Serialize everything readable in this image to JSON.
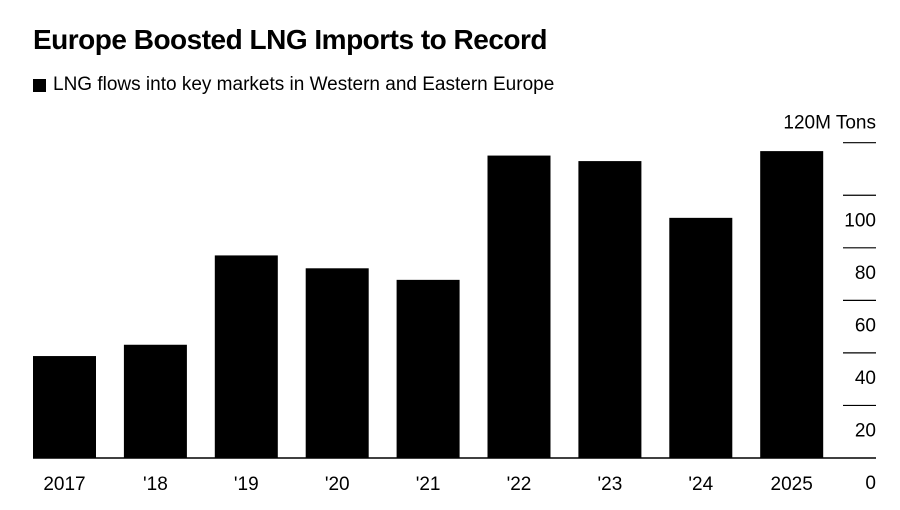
{
  "chart_data": {
    "type": "bar",
    "title": "Europe Boosted LNG Imports to Record",
    "legend": [
      {
        "label": "LNG flows into key markets in Western and Eastern Europe",
        "color": "#000000"
      }
    ],
    "legend_placement": "top-left",
    "categories": [
      "2017",
      "'18",
      "'19",
      "'20",
      "'21",
      "'22",
      "'23",
      "'24",
      "2025"
    ],
    "values": [
      38.8,
      43.1,
      77.1,
      72.2,
      67.8,
      115.1,
      113.0,
      91.4,
      116.8
    ],
    "ylabel": "",
    "xlabel": "",
    "ylim": [
      0,
      120
    ],
    "yticks": [
      0,
      20,
      40,
      60,
      80,
      100,
      120
    ],
    "ytick_labels": [
      "0",
      "20",
      "40",
      "60",
      "80",
      "100",
      "120M Tons"
    ],
    "y_axis_side": "right",
    "bar_color": "#000000"
  }
}
